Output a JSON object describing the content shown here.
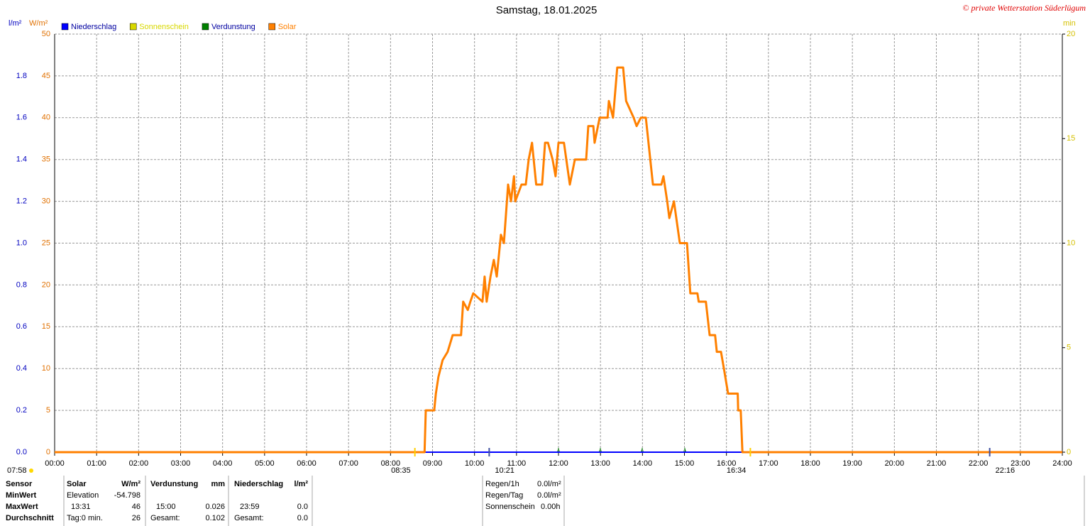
{
  "chart_data": {
    "type": "line",
    "title": "Samstag, 18.01.2025",
    "credit": "© private Wetterstation Süderlügum",
    "ylabel": "W/m²",
    "ylabel_rain": "l/m²",
    "y2label": "min",
    "xlim": [
      0,
      24
    ],
    "xticks": [
      {
        "value": 0,
        "label": "00:00"
      },
      {
        "value": 1,
        "label": "01:00"
      },
      {
        "value": 2,
        "label": "02:00"
      },
      {
        "value": 3,
        "label": "03:00"
      },
      {
        "value": 4,
        "label": "04:00"
      },
      {
        "value": 5,
        "label": "05:00"
      },
      {
        "value": 6,
        "label": "06:00"
      },
      {
        "value": 7,
        "label": "07:00"
      },
      {
        "value": 8,
        "label": "08:00"
      },
      {
        "value": 9,
        "label": "09:00"
      },
      {
        "value": 10,
        "label": "10:00"
      },
      {
        "value": 11,
        "label": "11:00"
      },
      {
        "value": 12,
        "label": "12:00"
      },
      {
        "value": 13,
        "label": "13:00"
      },
      {
        "value": 14,
        "label": "14:00"
      },
      {
        "value": 15,
        "label": "15:00"
      },
      {
        "value": 16,
        "label": "16:00"
      },
      {
        "value": 17,
        "label": "17:00"
      },
      {
        "value": 18,
        "label": "18:00"
      },
      {
        "value": 19,
        "label": "19:00"
      },
      {
        "value": 20,
        "label": "20:00"
      },
      {
        "value": 21,
        "label": "21:00"
      },
      {
        "value": 22,
        "label": "22:00"
      },
      {
        "value": 23,
        "label": "23:00"
      },
      {
        "value": 24,
        "label": "24:00"
      }
    ],
    "ylim": [
      0,
      50
    ],
    "yticks": [
      0,
      5,
      10,
      15,
      20,
      25,
      30,
      35,
      40,
      45,
      50
    ],
    "ylim_rain": [
      0,
      2
    ],
    "yticks_rain": [
      {
        "value": 0,
        "label": "0.0"
      },
      0.2,
      0.4,
      0.6,
      0.8,
      {
        "value": 1,
        "label": "1.0"
      },
      1.2,
      1.4,
      1.6,
      1.8
    ],
    "y2lim": [
      0,
      20
    ],
    "y2ticks": [
      0,
      5,
      10,
      15,
      20
    ],
    "grid": true,
    "series": [
      {
        "name": "Niederschlag",
        "color": "#0000ff",
        "axis": "rain",
        "x": [
          0,
          24
        ],
        "values": [
          0,
          0
        ]
      },
      {
        "name": "Sonnenschein",
        "color": "#d8d800",
        "axis": "y2",
        "x": [],
        "values": []
      },
      {
        "name": "Verdunstung",
        "color": "#008000",
        "x": [],
        "values": []
      },
      {
        "name": "Solar",
        "color": "#ff8000",
        "x": [
          0,
          8.81,
          8.84,
          9.04,
          9.08,
          9.14,
          9.24,
          9.36,
          9.48,
          9.68,
          9.73,
          9.84,
          9.9,
          9.97,
          10.19,
          10.24,
          10.29,
          10.38,
          10.46,
          10.53,
          10.63,
          10.7,
          10.8,
          10.87,
          10.94,
          10.97,
          11.12,
          11.22,
          11.29,
          11.37,
          11.47,
          11.61,
          11.68,
          11.75,
          11.86,
          11.93,
          12.0,
          12.13,
          12.27,
          12.39,
          12.66,
          12.71,
          12.83,
          12.86,
          12.98,
          13.06,
          13.17,
          13.2,
          13.3,
          13.4,
          13.54,
          13.61,
          13.79,
          13.86,
          13.96,
          14.08,
          14.25,
          14.45,
          14.5,
          14.59,
          14.64,
          14.75,
          14.89,
          15.06,
          15.14,
          15.31,
          15.34,
          15.51,
          15.6,
          15.73,
          15.77,
          15.87,
          15.94,
          16.04,
          16.27,
          16.28,
          16.34,
          16.38,
          24
        ],
        "values": [
          0,
          0,
          5,
          5,
          7,
          9,
          11,
          12,
          14,
          14,
          18,
          17,
          18,
          19,
          18,
          21,
          18,
          21,
          23,
          21,
          26,
          25,
          32,
          30,
          33,
          30,
          32,
          32,
          35,
          37,
          32,
          32,
          37,
          37,
          35,
          33,
          37,
          37,
          32,
          35,
          35,
          39,
          39,
          37,
          40,
          40,
          40,
          42,
          40,
          46,
          46,
          42,
          40,
          39,
          40,
          40,
          32,
          32,
          33,
          30,
          28,
          30,
          25,
          25,
          19,
          19,
          18,
          18,
          14,
          14,
          12,
          12,
          10,
          7,
          7,
          5,
          5,
          0,
          0
        ]
      }
    ],
    "annotations": [
      {
        "text": "08:35",
        "x": 8.58
      },
      {
        "text": "10:21",
        "x": 10.35
      },
      {
        "text": "16:34",
        "x": 16.57
      },
      {
        "text": "22:16",
        "x": 22.27
      }
    ],
    "moon_label": "07:58"
  },
  "stats": {
    "header": [
      "Sensor",
      "Solar",
      "W/m²",
      "Verdunstung",
      "mm",
      "Niederschlag",
      "l/m²"
    ],
    "rows": [
      [
        "MinWert",
        "Elevation",
        "-54.798",
        "",
        "",
        "",
        ""
      ],
      [
        "MaxWert",
        "13:31",
        "46",
        "15:00",
        "0.026",
        "23:59",
        "0.0"
      ],
      [
        "Durchschnitt",
        "Tag:0 min.",
        "26",
        "Gesamt:",
        "0.102",
        "Gesamt:",
        "0.0"
      ]
    ],
    "summary": [
      [
        "Regen/1h",
        "0.0l/m²"
      ],
      [
        "Regen/Tag",
        "0.0l/m²"
      ],
      [
        "Sonnenschein",
        "0.00h"
      ]
    ]
  }
}
